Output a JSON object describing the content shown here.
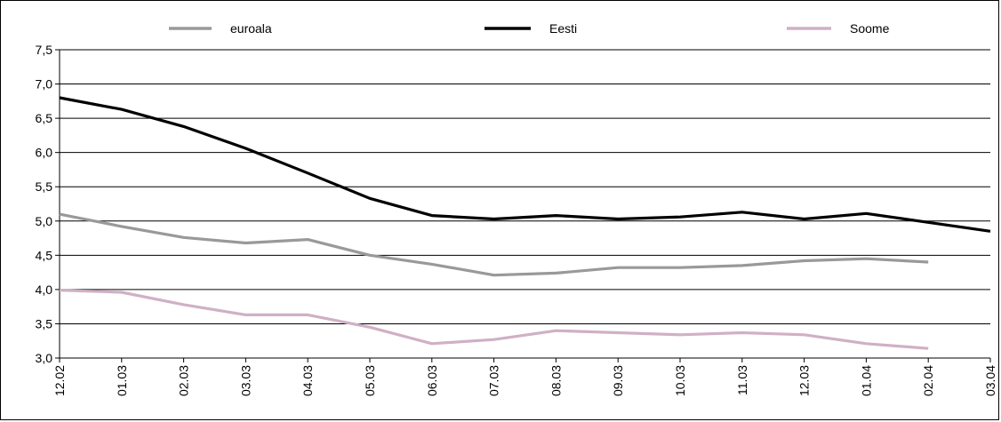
{
  "chart_data": {
    "type": "line",
    "categories": [
      "12.02",
      "01.03",
      "02.03",
      "03.03",
      "04.03",
      "05.03",
      "06.03",
      "07.03",
      "08.03",
      "09.03",
      "10.03",
      "11.03",
      "12.03",
      "01.04",
      "02.04",
      "03.04"
    ],
    "series": [
      {
        "name": "euroala",
        "color": "#999999",
        "values": [
          5.1,
          4.92,
          4.76,
          4.68,
          4.73,
          4.5,
          4.37,
          4.21,
          4.24,
          4.32,
          4.32,
          4.35,
          4.42,
          4.45,
          4.4,
          null
        ]
      },
      {
        "name": "Eesti",
        "color": "#000000",
        "values": [
          6.8,
          6.63,
          6.38,
          6.06,
          5.7,
          5.33,
          5.08,
          5.03,
          5.08,
          5.03,
          5.06,
          5.13,
          5.03,
          5.11,
          4.98,
          4.85
        ]
      },
      {
        "name": "Soome",
        "color": "#d0b0c6",
        "values": [
          3.99,
          3.96,
          3.78,
          3.63,
          3.63,
          3.45,
          3.21,
          3.27,
          3.4,
          3.37,
          3.34,
          3.37,
          3.34,
          3.21,
          3.14,
          null
        ]
      }
    ],
    "yticks": [
      "3,0",
      "3,5",
      "4,0",
      "4,5",
      "5,0",
      "5,5",
      "6,0",
      "6,5",
      "7,0",
      "7,5"
    ],
    "ylim": [
      3.0,
      7.5
    ],
    "grid": true,
    "legend": "top"
  }
}
